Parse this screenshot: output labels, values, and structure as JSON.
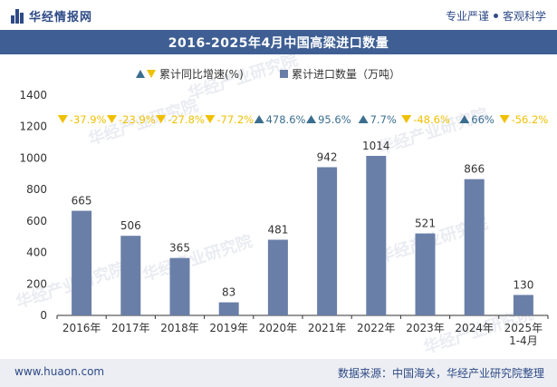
{
  "header": {
    "brand_name": "华经情报网",
    "tagline_left": "专业严谨",
    "tagline_right": "客观科学"
  },
  "footer": {
    "website": "www.huaon.com",
    "source": "数据来源：中国海关，华经产业研究院整理"
  },
  "watermark": "华经产业研究院",
  "colors": {
    "bar": "#6a7fa8",
    "title_bg": "#3f5f94",
    "up_marker": "#3b6e8f",
    "down_marker": "#f0c000"
  },
  "chart_data": {
    "type": "bar",
    "title": "2016-2025年4月中国高粱进口数量",
    "categories": [
      "2016年",
      "2017年",
      "2018年",
      "2019年",
      "2020年",
      "2021年",
      "2022年",
      "2023年",
      "2024年",
      "2025年\n1-4月"
    ],
    "series": [
      {
        "name": "累计进口数量（万吨）",
        "values": [
          665,
          506,
          365,
          83,
          481,
          942,
          1014,
          521,
          866,
          130
        ]
      },
      {
        "name": "累计同比增速(%)",
        "values": [
          -37.9,
          -23.9,
          -27.8,
          -77.2,
          478.6,
          95.6,
          7.7,
          -48.6,
          66,
          -56.2
        ],
        "labels": [
          "-37.9%",
          "-23.9%",
          "-27.8%",
          "-77.2%",
          "478.6%",
          "95.6%",
          "7.7%",
          "-48.6%",
          "66%",
          "-56.2%"
        ]
      }
    ],
    "legend": {
      "growth_label": "累计同比增速(%)",
      "volume_label": "累计进口数量（万吨）"
    },
    "yticks": [
      "0",
      "200",
      "400",
      "600",
      "800",
      "1000",
      "1200",
      "1400"
    ],
    "ylim": [
      0,
      1400
    ],
    "xlabel": "",
    "ylabel": ""
  }
}
